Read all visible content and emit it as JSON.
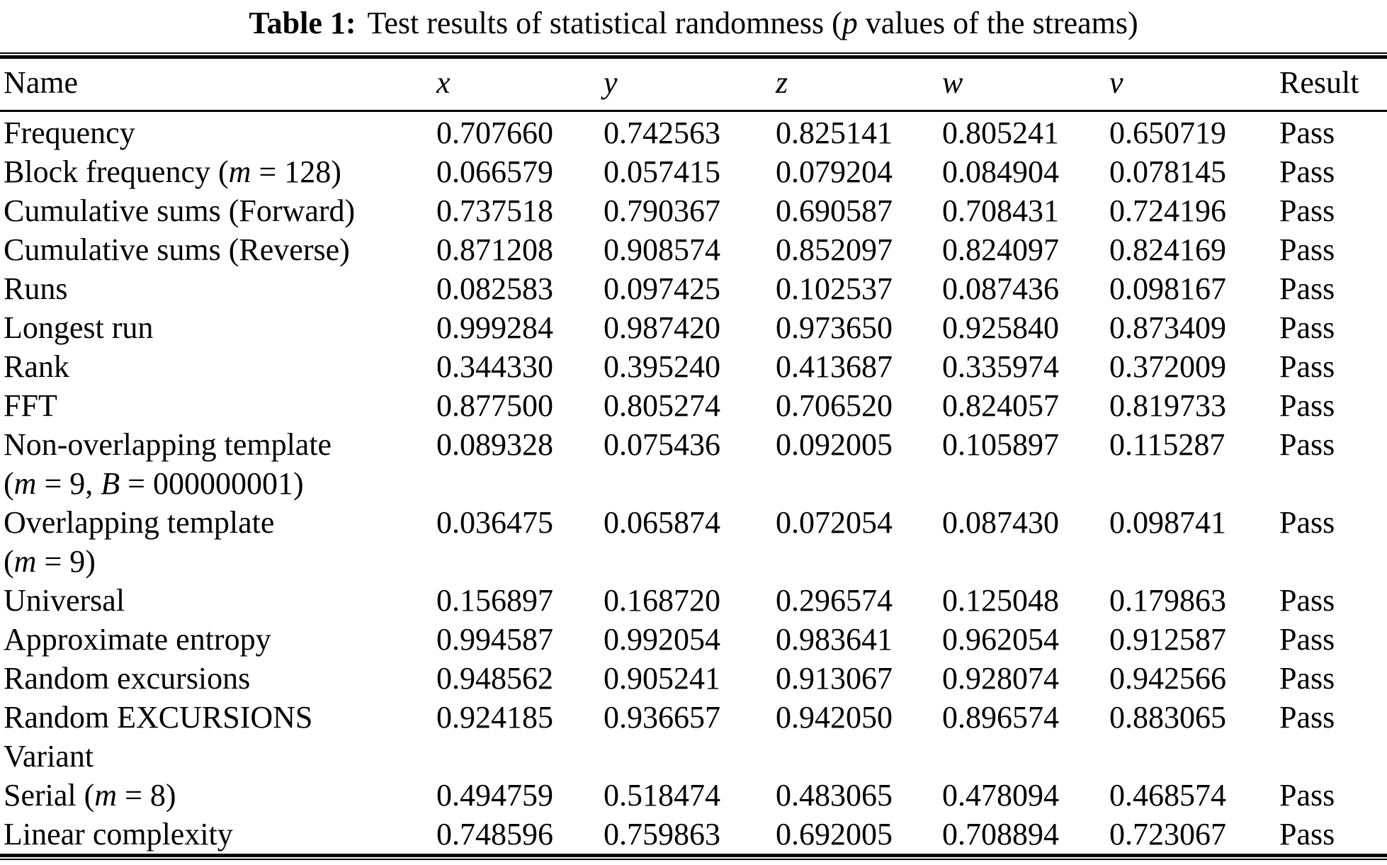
{
  "title": {
    "label": "Table 1:",
    "text": "Test results of statistical randomness (*p* values of the streams)"
  },
  "table": {
    "columns": [
      "Name",
      "*x*",
      "*y*",
      "*z*",
      "*w*",
      "*v*",
      "Result"
    ],
    "column_keys": [
      "name",
      "x",
      "y",
      "z",
      "w",
      "v",
      "result"
    ],
    "rows": [
      {
        "name_lines": [
          "Frequency"
        ],
        "values": [
          "0.707660",
          "0.742563",
          "0.825141",
          "0.805241",
          "0.650719"
        ],
        "result": "Pass"
      },
      {
        "name_lines": [
          "Block frequency (*m* = 128)"
        ],
        "values": [
          "0.066579",
          "0.057415",
          "0.079204",
          "0.084904",
          "0.078145"
        ],
        "result": "Pass"
      },
      {
        "name_lines": [
          "Cumulative sums (Forward)"
        ],
        "values": [
          "0.737518",
          "0.790367",
          "0.690587",
          "0.708431",
          "0.724196"
        ],
        "result": "Pass"
      },
      {
        "name_lines": [
          "Cumulative sums (Reverse)"
        ],
        "values": [
          "0.871208",
          "0.908574",
          "0.852097",
          "0.824097",
          "0.824169"
        ],
        "result": "Pass"
      },
      {
        "name_lines": [
          "Runs"
        ],
        "values": [
          "0.082583",
          "0.097425",
          "0.102537",
          "0.087436",
          "0.098167"
        ],
        "result": "Pass"
      },
      {
        "name_lines": [
          "Longest run"
        ],
        "values": [
          "0.999284",
          "0.987420",
          "0.973650",
          "0.925840",
          "0.873409"
        ],
        "result": "Pass"
      },
      {
        "name_lines": [
          "Rank"
        ],
        "values": [
          "0.344330",
          "0.395240",
          "0.413687",
          "0.335974",
          "0.372009"
        ],
        "result": "Pass"
      },
      {
        "name_lines": [
          "FFT"
        ],
        "values": [
          "0.877500",
          "0.805274",
          "0.706520",
          "0.824057",
          "0.819733"
        ],
        "result": "Pass"
      },
      {
        "name_lines": [
          "Non-overlapping template",
          "(*m* = 9, *B* = 000000001)"
        ],
        "values": [
          "0.089328",
          "0.075436",
          "0.092005",
          "0.105897",
          "0.115287"
        ],
        "result": "Pass"
      },
      {
        "name_lines": [
          "Overlapping template",
          "(*m* = 9)"
        ],
        "values": [
          "0.036475",
          "0.065874",
          "0.072054",
          "0.087430",
          "0.098741"
        ],
        "result": "Pass"
      },
      {
        "name_lines": [
          "Universal"
        ],
        "values": [
          "0.156897",
          "0.168720",
          "0.296574",
          "0.125048",
          "0.179863"
        ],
        "result": "Pass"
      },
      {
        "name_lines": [
          "Approximate entropy"
        ],
        "values": [
          "0.994587",
          "0.992054",
          "0.983641",
          "0.962054",
          "0.912587"
        ],
        "result": "Pass"
      },
      {
        "name_lines": [
          "Random excursions"
        ],
        "values": [
          "0.948562",
          "0.905241",
          "0.913067",
          "0.928074",
          "0.942566"
        ],
        "result": "Pass"
      },
      {
        "name_lines": [
          "Random EXCURSIONS",
          "Variant"
        ],
        "values": [
          "0.924185",
          "0.936657",
          "0.942050",
          "0.896574",
          "0.883065"
        ],
        "result": "Pass"
      },
      {
        "name_lines": [
          "Serial (*m* = 8)"
        ],
        "values": [
          "0.494759",
          "0.518474",
          "0.483065",
          "0.478094",
          "0.468574"
        ],
        "result": "Pass"
      },
      {
        "name_lines": [
          "Linear complexity"
        ],
        "values": [
          "0.748596",
          "0.759863",
          "0.692005",
          "0.708894",
          "0.723067"
        ],
        "result": "Pass"
      }
    ]
  }
}
